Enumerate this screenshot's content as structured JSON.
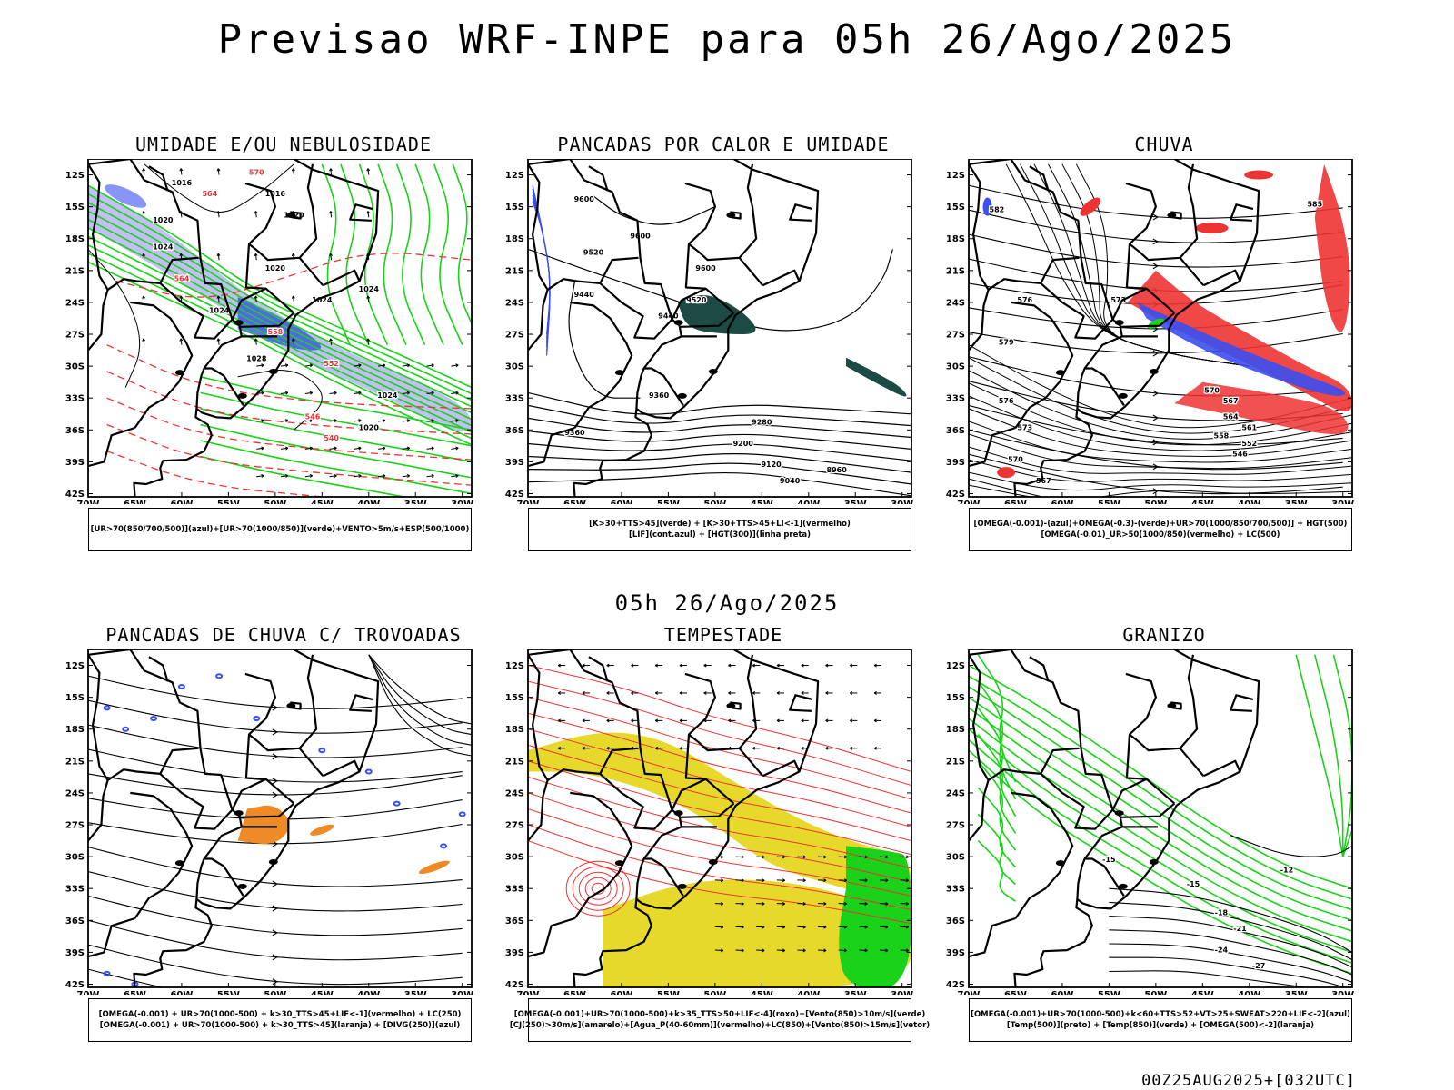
{
  "main_title": "Previsao WRF-INPE  para 05h 26/Ago/2025",
  "mid_title": "05h 26/Ago/2025",
  "footer": "00Z25AUG2025+[032UTC]",
  "axes": {
    "lat_labels": [
      "12S",
      "15S",
      "18S",
      "21S",
      "24S",
      "27S",
      "30S",
      "33S",
      "36S",
      "39S",
      "42S"
    ],
    "lon_labels": [
      "70W",
      "65W",
      "60W",
      "55W",
      "50W",
      "45W",
      "40W",
      "35W",
      "30W"
    ]
  },
  "colors": {
    "blue": "#3a4ff0",
    "green": "#19d219",
    "red": "#ee3333",
    "lavender": "#b7b4f2",
    "orange": "#f08a24",
    "yellow": "#e6d92c",
    "dark_teal": "#1c4a44",
    "black": "#000000"
  },
  "panels": [
    {
      "title": "UMIDADE E/OU NEBULOSIDADE",
      "legend": [
        "[UR>70(850/700/500)](azul)+[UR>70(1000/850)](verde)+VENTO>5m/s+ESP(500/1000)"
      ],
      "contour_labels": [
        "1016",
        "1016",
        "1020",
        "1020",
        "1020",
        "1024",
        "1024",
        "1024",
        "1024",
        "1028",
        "1024",
        "1020",
        "564",
        "570",
        "564",
        "558",
        "552",
        "546",
        "540"
      ]
    },
    {
      "title": "PANCADAS POR CALOR E UMIDADE",
      "legend": [
        "[K>30+TTS>45](verde) + [K>30+TTS>45+LI<-1](vermelho)",
        "[LIF](cont.azul) + [HGT(300)](linha preta)"
      ],
      "contour_labels": [
        "9600",
        "9520",
        "9440",
        "9600",
        "9520",
        "9600",
        "9440",
        "9360",
        "9360",
        "9280",
        "9200",
        "9120",
        "9040",
        "8960"
      ]
    },
    {
      "title": "CHUVA",
      "legend": [
        "[OMEGA(-0.001)-(azul)+OMEGA(-0.3)-(verde)+UR>70(1000/850/700/500)] + HGT(500)",
        "[OMEGA(-0.01)_UR>50(1000/850)(vermelho) + LC(500)"
      ],
      "contour_labels": [
        "582",
        "585",
        "576",
        "579",
        "576",
        "573",
        "570",
        "567",
        "564",
        "561",
        "558",
        "552",
        "546",
        "573",
        "570",
        "567"
      ]
    },
    {
      "title": "PANCADAS DE CHUVA C/ TROVOADAS",
      "legend": [
        "[OMEGA(-0.001) + UR>70(1000-500) + k>30_TTS>45+LIF<-1](vermelho) + LC(250)",
        "[OMEGA(-0.001) + UR>70(1000-500) + k>30_TTS>45](laranja) + [DIVG(250)](azul)"
      ],
      "contour_labels": []
    },
    {
      "title": "TEMPESTADE",
      "legend": [
        "[OMEGA(-0.001)+UR>70(1000-500)+k>35_TTS>50+LIF<-4](roxo)+[Vento(850)>10m/s](verde)",
        "[CJ(250)>30m/s](amarelo)+[Agua_P(40-60mm)](vermelho)+LC(850)+[Vento(850)>15m/s](vetor)"
      ],
      "contour_labels": []
    },
    {
      "title": "GRANIZO",
      "legend": [
        "[OMEGA(-0.001)+UR>70(1000-500)+k<60+TTS>52+VT>25+SWEAT>220+LIF<-2](azul)",
        "[Temp(500)](preto) + [Temp(850)](verde) + [OMEGA(500)<-2](laranja)"
      ],
      "contour_labels": [
        "-12",
        "-15",
        "-15",
        "-18",
        "-21",
        "-24",
        "-27"
      ]
    }
  ]
}
